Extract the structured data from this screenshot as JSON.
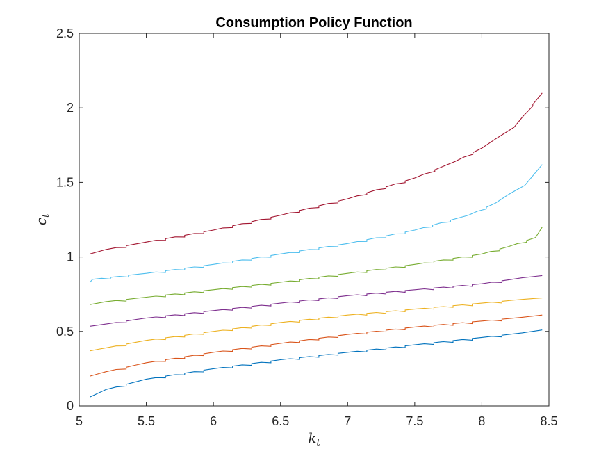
{
  "chart_data": {
    "type": "line",
    "title": "Consumption Policy Function",
    "xlabel": {
      "base": "k",
      "sub": "t"
    },
    "ylabel": {
      "base": "c",
      "sub": "t"
    },
    "xlim": [
      5,
      8.5
    ],
    "ylim": [
      0,
      2.5
    ],
    "xticks": [
      "5",
      "5.5",
      "6",
      "6.5",
      "7",
      "7.5",
      "8",
      "8.5"
    ],
    "yticks": [
      "0",
      "0.5",
      "1",
      "1.5",
      "2",
      "2.5"
    ],
    "grid": false,
    "legend": "none",
    "series": [
      {
        "color": "#0072BD",
        "x": [
          5.08,
          5.2,
          5.5,
          6.0,
          6.5,
          7.0,
          7.5,
          8.0,
          8.3,
          8.45
        ],
        "values": [
          0.06,
          0.11,
          0.18,
          0.25,
          0.31,
          0.36,
          0.41,
          0.46,
          0.49,
          0.51
        ]
      },
      {
        "color": "#D95319",
        "x": [
          5.08,
          5.2,
          5.5,
          6.0,
          6.5,
          7.0,
          7.5,
          8.0,
          8.3,
          8.45
        ],
        "values": [
          0.2,
          0.23,
          0.29,
          0.36,
          0.42,
          0.48,
          0.53,
          0.57,
          0.595,
          0.61
        ]
      },
      {
        "color": "#EDB120",
        "x": [
          5.08,
          5.2,
          5.5,
          6.0,
          6.5,
          7.0,
          7.5,
          8.0,
          8.3,
          8.45
        ],
        "values": [
          0.37,
          0.39,
          0.44,
          0.5,
          0.56,
          0.61,
          0.65,
          0.69,
          0.715,
          0.725
        ]
      },
      {
        "color": "#7E2F8E",
        "x": [
          5.08,
          5.2,
          5.5,
          6.0,
          6.5,
          7.0,
          7.5,
          8.0,
          8.3,
          8.45
        ],
        "values": [
          0.535,
          0.55,
          0.59,
          0.64,
          0.69,
          0.74,
          0.78,
          0.82,
          0.86,
          0.875
        ]
      },
      {
        "color": "#77AC30",
        "x": [
          5.08,
          5.2,
          5.5,
          6.0,
          6.5,
          7.0,
          7.5,
          8.0,
          8.2,
          8.4,
          8.45
        ],
        "values": [
          0.68,
          0.7,
          0.73,
          0.78,
          0.83,
          0.89,
          0.95,
          1.02,
          1.07,
          1.13,
          1.2
        ]
      },
      {
        "color": "#4DBEEE",
        "x": [
          5.08,
          5.1,
          5.5,
          6.0,
          6.5,
          7.0,
          7.5,
          7.9,
          8.1,
          8.2,
          8.32,
          8.45
        ],
        "values": [
          0.83,
          0.85,
          0.89,
          0.95,
          1.02,
          1.09,
          1.18,
          1.28,
          1.36,
          1.42,
          1.48,
          1.62
        ]
      },
      {
        "color": "#A2142F",
        "x": [
          5.08,
          5.2,
          5.5,
          6.0,
          6.5,
          7.0,
          7.5,
          7.8,
          8.0,
          8.1,
          8.24,
          8.45
        ],
        "values": [
          1.02,
          1.05,
          1.1,
          1.18,
          1.28,
          1.39,
          1.53,
          1.64,
          1.73,
          1.79,
          1.87,
          2.1
        ]
      }
    ]
  }
}
